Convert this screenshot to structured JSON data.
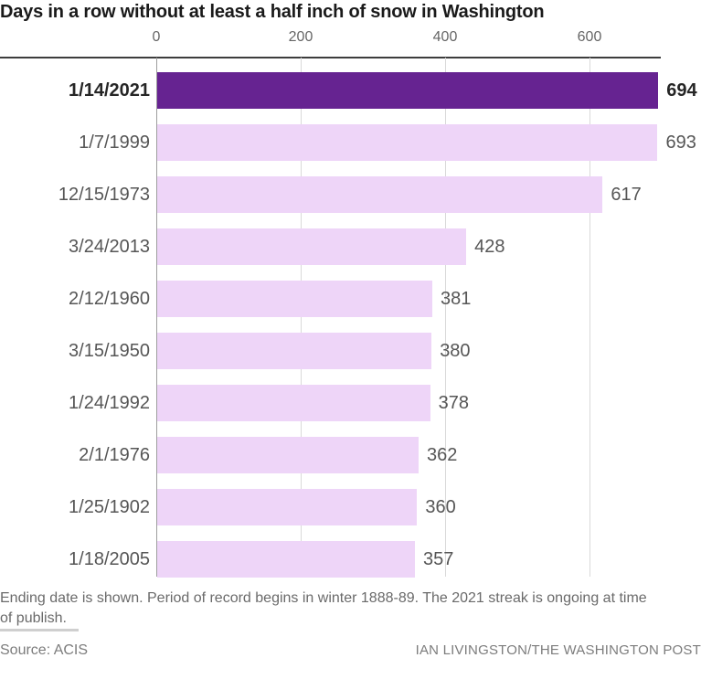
{
  "title": "Days in a row without at least a half inch of snow in Washington",
  "chart_data": {
    "type": "bar",
    "orientation": "horizontal",
    "title": "Days in a row without at least a half inch of snow in Washington",
    "categories": [
      "1/14/2021",
      "1/7/1999",
      "12/15/1973",
      "3/24/2013",
      "2/12/1960",
      "3/15/1950",
      "1/24/1992",
      "2/1/1976",
      "1/25/1902",
      "1/18/2005"
    ],
    "values": [
      694,
      693,
      617,
      428,
      381,
      380,
      378,
      362,
      360,
      357
    ],
    "highlight_index": 0,
    "xlabel": "",
    "ylabel": "",
    "xlim": [
      0,
      700
    ],
    "x_ticks": [
      0,
      200,
      400,
      600
    ],
    "x_tick_labels": [
      "0",
      "200",
      "400",
      "600"
    ],
    "grid": "vertical",
    "legend": "none",
    "colors": {
      "highlight_bar": "#662391",
      "bar": "#eed5f8",
      "axis_line": "#9e9e9e",
      "gridline": "#d9d9d9",
      "top_rule": "#3d3d3d"
    }
  },
  "footer": {
    "note": "Ending date is shown. Period of record begins in winter 1888-89. The 2021 streak is ongoing at time of publish.",
    "source": "Source: ACIS",
    "credit": "IAN LIVINGSTON/THE WASHINGTON POST"
  }
}
